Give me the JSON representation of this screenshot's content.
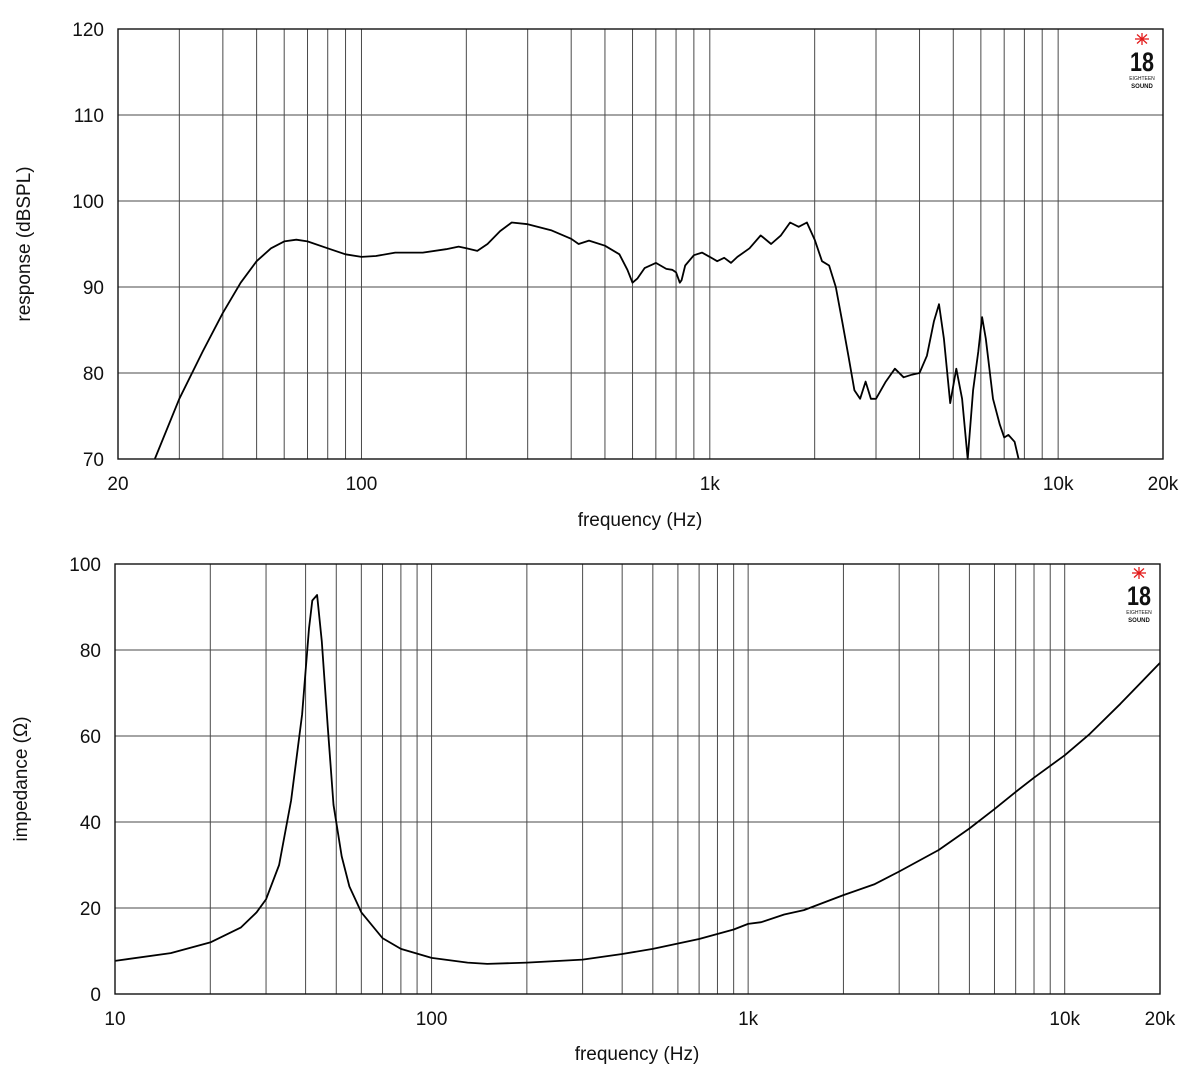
{
  "logo": {
    "number": "18",
    "line1": "EIGHTEEN",
    "line2": "SOUND"
  },
  "chart_data": [
    {
      "type": "line",
      "xlabel": "frequency (Hz)",
      "ylabel": "response (dBSPL)",
      "x_scale": "log",
      "xlim": [
        20,
        20000
      ],
      "ylim": [
        70,
        120
      ],
      "x_grid": [
        20,
        30,
        40,
        50,
        60,
        70,
        80,
        90,
        100,
        200,
        300,
        400,
        500,
        600,
        700,
        800,
        900,
        1000,
        2000,
        3000,
        4000,
        5000,
        6000,
        7000,
        8000,
        9000,
        10000,
        20000
      ],
      "x_ticks": [
        {
          "value": 20,
          "label": "20"
        },
        {
          "value": 100,
          "label": "100"
        },
        {
          "value": 1000,
          "label": "1k"
        },
        {
          "value": 10000,
          "label": "10k"
        },
        {
          "value": 20000,
          "label": "20k"
        }
      ],
      "y_ticks": [
        {
          "value": 70,
          "label": "70"
        },
        {
          "value": 80,
          "label": "80"
        },
        {
          "value": 90,
          "label": "90"
        },
        {
          "value": 100,
          "label": "100"
        },
        {
          "value": 110,
          "label": "110"
        },
        {
          "value": 120,
          "label": "120"
        }
      ],
      "grid": true,
      "series": [
        {
          "points": [
            [
              25.5,
              70
            ],
            [
              30,
              77
            ],
            [
              35,
              82.5
            ],
            [
              40,
              87
            ],
            [
              45,
              90.5
            ],
            [
              50,
              93
            ],
            [
              55,
              94.5
            ],
            [
              60,
              95.3
            ],
            [
              65,
              95.5
            ],
            [
              70,
              95.3
            ],
            [
              80,
              94.5
            ],
            [
              90,
              93.8
            ],
            [
              100,
              93.5
            ],
            [
              110,
              93.6
            ],
            [
              125,
              94
            ],
            [
              150,
              94
            ],
            [
              175,
              94.4
            ],
            [
              190,
              94.7
            ],
            [
              200,
              94.5
            ],
            [
              215,
              94.2
            ],
            [
              230,
              95
            ],
            [
              250,
              96.5
            ],
            [
              270,
              97.5
            ],
            [
              300,
              97.3
            ],
            [
              350,
              96.6
            ],
            [
              400,
              95.6
            ],
            [
              420,
              95
            ],
            [
              450,
              95.4
            ],
            [
              500,
              94.8
            ],
            [
              550,
              93.8
            ],
            [
              580,
              92
            ],
            [
              600,
              90.5
            ],
            [
              620,
              91
            ],
            [
              650,
              92.2
            ],
            [
              700,
              92.8
            ],
            [
              750,
              92.1
            ],
            [
              780,
              92
            ],
            [
              800,
              91.7
            ],
            [
              820,
              90.5
            ],
            [
              830,
              90.8
            ],
            [
              850,
              92.5
            ],
            [
              900,
              93.7
            ],
            [
              950,
              94
            ],
            [
              1000,
              93.5
            ],
            [
              1050,
              93
            ],
            [
              1100,
              93.4
            ],
            [
              1150,
              92.8
            ],
            [
              1200,
              93.5
            ],
            [
              1300,
              94.5
            ],
            [
              1400,
              96
            ],
            [
              1500,
              95
            ],
            [
              1600,
              96
            ],
            [
              1700,
              97.5
            ],
            [
              1800,
              97
            ],
            [
              1900,
              97.5
            ],
            [
              2000,
              95.5
            ],
            [
              2100,
              93
            ],
            [
              2200,
              92.5
            ],
            [
              2300,
              90
            ],
            [
              2400,
              86
            ],
            [
              2500,
              82
            ],
            [
              2600,
              78
            ],
            [
              2700,
              77
            ],
            [
              2800,
              79
            ],
            [
              2900,
              77
            ],
            [
              3000,
              77
            ],
            [
              3200,
              79
            ],
            [
              3400,
              80.5
            ],
            [
              3600,
              79.5
            ],
            [
              3800,
              79.8
            ],
            [
              4000,
              80
            ],
            [
              4200,
              82
            ],
            [
              4400,
              86
            ],
            [
              4550,
              88
            ],
            [
              4700,
              84
            ],
            [
              4900,
              76.5
            ],
            [
              5100,
              80.5
            ],
            [
              5300,
              77
            ],
            [
              5500,
              70
            ],
            [
              5700,
              78
            ],
            [
              5900,
              82.5
            ],
            [
              6050,
              86.5
            ],
            [
              6200,
              84
            ],
            [
              6500,
              77
            ],
            [
              6800,
              74
            ],
            [
              7000,
              72.5
            ],
            [
              7200,
              72.8
            ],
            [
              7500,
              72
            ],
            [
              7700,
              70
            ]
          ]
        }
      ]
    },
    {
      "type": "line",
      "xlabel": "frequency (Hz)",
      "ylabel": "impedance (Ω)",
      "x_scale": "log",
      "xlim": [
        10,
        20000
      ],
      "ylim": [
        0,
        100
      ],
      "x_grid": [
        10,
        20,
        30,
        40,
        50,
        60,
        70,
        80,
        90,
        100,
        200,
        300,
        400,
        500,
        600,
        700,
        800,
        900,
        1000,
        2000,
        3000,
        4000,
        5000,
        6000,
        7000,
        8000,
        9000,
        10000,
        20000
      ],
      "x_ticks": [
        {
          "value": 10,
          "label": "10"
        },
        {
          "value": 100,
          "label": "100"
        },
        {
          "value": 1000,
          "label": "1k"
        },
        {
          "value": 10000,
          "label": "10k"
        },
        {
          "value": 20000,
          "label": "20k"
        }
      ],
      "y_ticks": [
        {
          "value": 0,
          "label": "0"
        },
        {
          "value": 20,
          "label": "20"
        },
        {
          "value": 40,
          "label": "40"
        },
        {
          "value": 60,
          "label": "60"
        },
        {
          "value": 80,
          "label": "80"
        },
        {
          "value": 100,
          "label": "100"
        }
      ],
      "grid": true,
      "series": [
        {
          "points": [
            [
              10,
              7.7
            ],
            [
              15,
              9.5
            ],
            [
              20,
              12
            ],
            [
              25,
              15.5
            ],
            [
              28,
              19
            ],
            [
              30,
              22
            ],
            [
              33,
              30
            ],
            [
              36,
              45
            ],
            [
              39,
              65
            ],
            [
              41,
              85
            ],
            [
              42,
              91.5
            ],
            [
              43.5,
              92.8
            ],
            [
              45,
              82
            ],
            [
              47,
              62
            ],
            [
              49,
              44
            ],
            [
              52,
              32
            ],
            [
              55,
              25
            ],
            [
              60,
              19
            ],
            [
              70,
              13
            ],
            [
              80,
              10.5
            ],
            [
              100,
              8.4
            ],
            [
              130,
              7.3
            ],
            [
              150,
              7
            ],
            [
              200,
              7.3
            ],
            [
              300,
              8
            ],
            [
              400,
              9.3
            ],
            [
              500,
              10.5
            ],
            [
              700,
              12.8
            ],
            [
              900,
              15
            ],
            [
              1000,
              16.3
            ],
            [
              1100,
              16.7
            ],
            [
              1300,
              18.5
            ],
            [
              1500,
              19.5
            ],
            [
              2000,
              23
            ],
            [
              2500,
              25.5
            ],
            [
              3000,
              28.5
            ],
            [
              4000,
              33.5
            ],
            [
              5000,
              38.5
            ],
            [
              6000,
              43
            ],
            [
              7000,
              47
            ],
            [
              8000,
              50.3
            ],
            [
              10000,
              55.5
            ],
            [
              12000,
              60.5
            ],
            [
              15000,
              67.5
            ],
            [
              20000,
              77
            ]
          ]
        }
      ]
    }
  ]
}
